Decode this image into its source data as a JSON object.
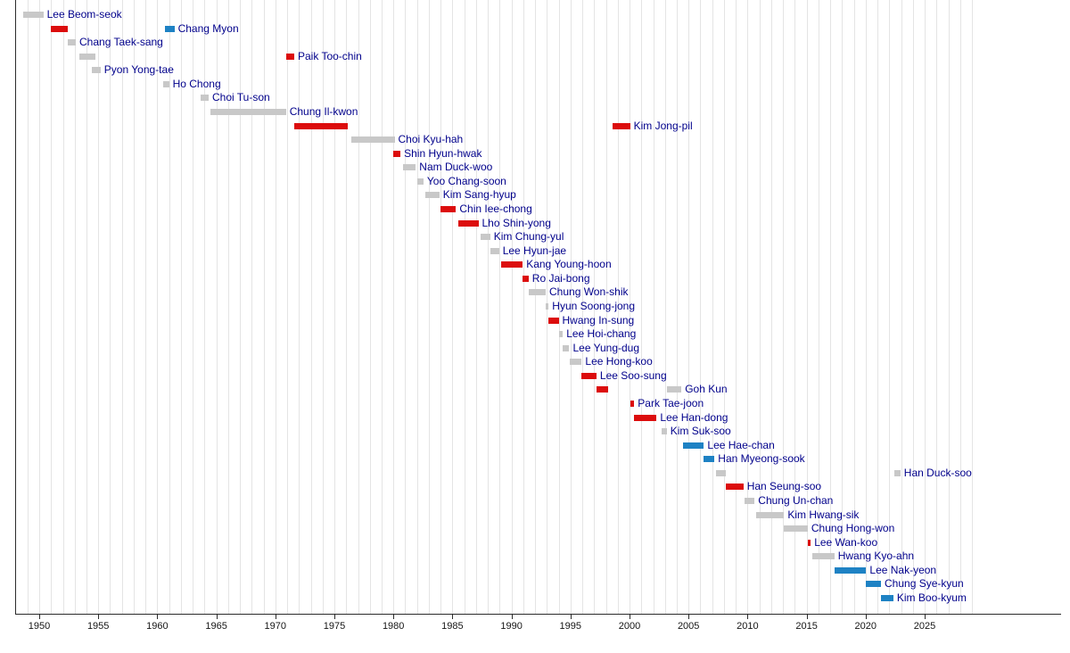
{
  "chart_data": {
    "type": "timeline",
    "description": "Gantt-style timeline of term bars, one row per person, name label after last bar",
    "x_axis": {
      "min": 1948,
      "max": 2029,
      "tick_interval": 5,
      "ticks": [
        "1950",
        "1955",
        "1960",
        "1965",
        "1970",
        "1975",
        "1980",
        "1985",
        "1990",
        "1995",
        "2000",
        "2005",
        "2010",
        "2015",
        "2020",
        "2025"
      ]
    },
    "colors": {
      "gray": "#c8c8c8",
      "red": "#dc0d0d",
      "blue": "#1e82c4"
    },
    "label_color": "#00008b",
    "gridline_color": "#e4e4e4",
    "axis_color": "#2b2b2b",
    "people": [
      {
        "name": "Lee Beom-seok",
        "bars": [
          {
            "start": 1948.65,
            "end": 1950.35,
            "color": "gray"
          }
        ]
      },
      {
        "name": "Chang Myon",
        "bars": [
          {
            "start": 1950.95,
            "end": 1952.45,
            "color": "red"
          },
          {
            "start": 1960.65,
            "end": 1961.45,
            "color": "blue"
          }
        ]
      },
      {
        "name": "Chang Taek-sang",
        "bars": [
          {
            "start": 1952.45,
            "end": 1953.1,
            "color": "gray"
          }
        ]
      },
      {
        "name": "Paik Too-chin",
        "bars": [
          {
            "start": 1953.4,
            "end": 1954.75,
            "color": "gray"
          },
          {
            "start": 1970.95,
            "end": 1971.6,
            "color": "red"
          }
        ]
      },
      {
        "name": "Pyon Yong-tae",
        "bars": [
          {
            "start": 1954.45,
            "end": 1955.2,
            "color": "gray"
          }
        ]
      },
      {
        "name": "Ho Chong",
        "bars": [
          {
            "start": 1960.5,
            "end": 1961.0,
            "color": "gray"
          }
        ]
      },
      {
        "name": "Choi Tu-son",
        "bars": [
          {
            "start": 1963.7,
            "end": 1964.35,
            "color": "gray"
          }
        ]
      },
      {
        "name": "Chung Il-kwon",
        "bars": [
          {
            "start": 1964.5,
            "end": 1970.9,
            "color": "gray"
          }
        ]
      },
      {
        "name": "Kim Jong-pil",
        "bars": [
          {
            "start": 1971.6,
            "end": 1976.1,
            "color": "red"
          },
          {
            "start": 1998.6,
            "end": 2000.05,
            "color": "red"
          }
        ]
      },
      {
        "name": "Choi Kyu-hah",
        "bars": [
          {
            "start": 1976.4,
            "end": 1980.1,
            "color": "gray"
          }
        ]
      },
      {
        "name": "Shin Hyun-hwak",
        "bars": [
          {
            "start": 1979.95,
            "end": 1980.6,
            "color": "red"
          }
        ]
      },
      {
        "name": "Nam Duck-woo",
        "bars": [
          {
            "start": 1980.8,
            "end": 1981.9,
            "color": "gray"
          }
        ]
      },
      {
        "name": "Yoo Chang-soon",
        "bars": [
          {
            "start": 1982.0,
            "end": 1982.55,
            "color": "gray"
          }
        ]
      },
      {
        "name": "Kim Sang-hyup",
        "bars": [
          {
            "start": 1982.7,
            "end": 1983.9,
            "color": "gray"
          }
        ]
      },
      {
        "name": "Chin Iee-chong",
        "bars": [
          {
            "start": 1984.0,
            "end": 1985.3,
            "color": "red"
          }
        ]
      },
      {
        "name": "Lho Shin-yong",
        "bars": [
          {
            "start": 1985.5,
            "end": 1987.2,
            "color": "red"
          }
        ]
      },
      {
        "name": "Kim Chung-yul",
        "bars": [
          {
            "start": 1987.4,
            "end": 1988.2,
            "color": "gray"
          }
        ]
      },
      {
        "name": "Lee Hyun-jae",
        "bars": [
          {
            "start": 1988.25,
            "end": 1988.95,
            "color": "gray"
          }
        ]
      },
      {
        "name": "Kang Young-hoon",
        "bars": [
          {
            "start": 1989.1,
            "end": 1990.95,
            "color": "red"
          }
        ]
      },
      {
        "name": "Ro Jai-bong",
        "bars": [
          {
            "start": 1990.95,
            "end": 1991.45,
            "color": "red"
          }
        ]
      },
      {
        "name": "Chung Won-shik",
        "bars": [
          {
            "start": 1991.5,
            "end": 1992.9,
            "color": "gray"
          }
        ]
      },
      {
        "name": "Hyun Soong-jong",
        "bars": [
          {
            "start": 1992.9,
            "end": 1993.15,
            "color": "gray"
          }
        ]
      },
      {
        "name": "Hwang In-sung",
        "bars": [
          {
            "start": 1993.15,
            "end": 1994.0,
            "color": "red"
          }
        ]
      },
      {
        "name": "Lee Hoi-chang",
        "bars": [
          {
            "start": 1994.0,
            "end": 1994.35,
            "color": "gray"
          }
        ]
      },
      {
        "name": "Lee Yung-dug",
        "bars": [
          {
            "start": 1994.35,
            "end": 1994.9,
            "color": "gray"
          }
        ]
      },
      {
        "name": "Lee Hong-koo",
        "bars": [
          {
            "start": 1994.95,
            "end": 1995.95,
            "color": "gray"
          }
        ]
      },
      {
        "name": "Lee Soo-sung",
        "bars": [
          {
            "start": 1995.95,
            "end": 1997.2,
            "color": "red"
          }
        ]
      },
      {
        "name": "Goh Kun",
        "bars": [
          {
            "start": 1997.2,
            "end": 1998.2,
            "color": "red"
          },
          {
            "start": 2003.15,
            "end": 2004.4,
            "color": "gray"
          }
        ]
      },
      {
        "name": "Park Tae-joon",
        "bars": [
          {
            "start": 2000.05,
            "end": 2000.4,
            "color": "red"
          }
        ]
      },
      {
        "name": "Lee Han-dong",
        "bars": [
          {
            "start": 2000.4,
            "end": 2002.3,
            "color": "red"
          }
        ]
      },
      {
        "name": "Kim Suk-soo",
        "bars": [
          {
            "start": 2002.7,
            "end": 2003.15,
            "color": "gray"
          }
        ]
      },
      {
        "name": "Lee Hae-chan",
        "bars": [
          {
            "start": 2004.5,
            "end": 2006.3,
            "color": "blue"
          }
        ]
      },
      {
        "name": "Han Myeong-sook",
        "bars": [
          {
            "start": 2006.3,
            "end": 2007.2,
            "color": "blue"
          }
        ]
      },
      {
        "name": "Han Duck-soo",
        "bars": [
          {
            "start": 2007.3,
            "end": 2008.15,
            "color": "gray"
          },
          {
            "start": 2022.4,
            "end": 2022.95,
            "color": "gray"
          }
        ]
      },
      {
        "name": "Han Seung-soo",
        "bars": [
          {
            "start": 2008.15,
            "end": 2009.65,
            "color": "red"
          }
        ]
      },
      {
        "name": "Chung Un-chan",
        "bars": [
          {
            "start": 2009.75,
            "end": 2010.6,
            "color": "gray"
          }
        ]
      },
      {
        "name": "Kim Hwang-sik",
        "bars": [
          {
            "start": 2010.75,
            "end": 2013.1,
            "color": "gray"
          }
        ]
      },
      {
        "name": "Chung Hong-won",
        "bars": [
          {
            "start": 2013.1,
            "end": 2015.1,
            "color": "gray"
          }
        ]
      },
      {
        "name": "Lee Wan-koo",
        "bars": [
          {
            "start": 2015.1,
            "end": 2015.35,
            "color": "red"
          }
        ]
      },
      {
        "name": "Hwang Kyo-ahn",
        "bars": [
          {
            "start": 2015.45,
            "end": 2017.35,
            "color": "gray"
          }
        ]
      },
      {
        "name": "Lee Nak-yeon",
        "bars": [
          {
            "start": 2017.4,
            "end": 2020.05,
            "color": "blue"
          }
        ]
      },
      {
        "name": "Chung Sye-kyun",
        "bars": [
          {
            "start": 2020.05,
            "end": 2021.3,
            "color": "blue"
          }
        ]
      },
      {
        "name": "Kim Boo-kyum",
        "bars": [
          {
            "start": 2021.3,
            "end": 2022.35,
            "color": "blue"
          }
        ]
      }
    ]
  }
}
